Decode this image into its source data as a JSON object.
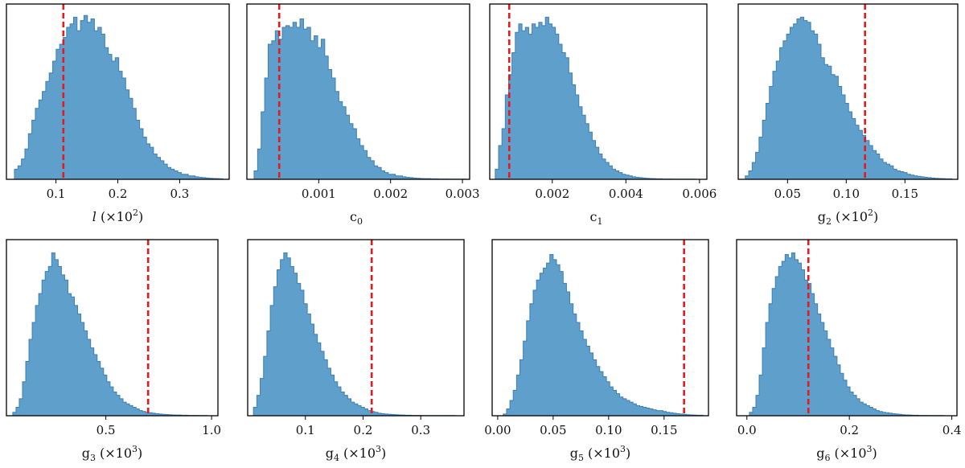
{
  "chart_data": [
    {
      "type": "histogram",
      "xlabel": {
        "base": "l",
        "italic": true,
        "sub": "",
        "factor": "(×10",
        "exp": "2",
        "close": ")"
      },
      "xlim": [
        0.02,
        0.38
      ],
      "ticks": [
        {
          "v": 0.1,
          "label": "0.1"
        },
        {
          "v": 0.2,
          "label": "0.2"
        },
        {
          "v": 0.3,
          "label": "0.3"
        }
      ],
      "truth": 0.112,
      "bins": [
        0.033,
        0.37
      ],
      "heights": [
        0.06,
        0.08,
        0.12,
        0.18,
        0.27,
        0.35,
        0.42,
        0.47,
        0.52,
        0.58,
        0.63,
        0.7,
        0.77,
        0.8,
        0.84,
        0.9,
        0.92,
        0.96,
        0.88,
        0.94,
        0.97,
        0.93,
        0.95,
        0.88,
        0.9,
        0.86,
        0.78,
        0.74,
        0.7,
        0.72,
        0.64,
        0.6,
        0.53,
        0.48,
        0.42,
        0.35,
        0.3,
        0.25,
        0.21,
        0.19,
        0.15,
        0.13,
        0.11,
        0.09,
        0.07,
        0.06,
        0.05,
        0.04,
        0.03,
        0.03,
        0.02,
        0.02,
        0.015,
        0.012,
        0.01,
        0.008,
        0.006,
        0.005,
        0.004,
        0.003
      ]
    },
    {
      "type": "histogram",
      "xlabel": {
        "base": "c",
        "italic": false,
        "sub": "0",
        "factor": "",
        "exp": "",
        "close": ""
      },
      "xlim": [
        0.0,
        0.0031
      ],
      "ticks": [
        {
          "v": 0.001,
          "label": "0.001"
        },
        {
          "v": 0.002,
          "label": "0.002"
        },
        {
          "v": 0.003,
          "label": "0.003"
        }
      ],
      "truth": 0.00045,
      "bins": [
        0.0001,
        0.00305
      ],
      "heights": [
        0.05,
        0.18,
        0.4,
        0.6,
        0.8,
        0.82,
        0.88,
        0.83,
        0.9,
        0.91,
        0.9,
        0.93,
        0.9,
        0.95,
        0.89,
        0.9,
        0.82,
        0.85,
        0.78,
        0.83,
        0.73,
        0.65,
        0.6,
        0.52,
        0.46,
        0.43,
        0.38,
        0.33,
        0.3,
        0.24,
        0.2,
        0.17,
        0.13,
        0.11,
        0.08,
        0.07,
        0.05,
        0.04,
        0.03,
        0.03,
        0.02,
        0.02,
        0.015,
        0.012,
        0.01,
        0.008,
        0.006,
        0.005,
        0.004,
        0.004,
        0.003,
        0.003,
        0.002,
        0.002,
        0.002,
        0.001,
        0.001,
        0.001,
        0.001,
        0.001
      ]
    },
    {
      "type": "histogram",
      "xlabel": {
        "base": "c",
        "italic": false,
        "sub": "1",
        "factor": "",
        "exp": "",
        "close": ""
      },
      "xlim": [
        0.0003,
        0.0062
      ],
      "ticks": [
        {
          "v": 0.002,
          "label": "0.002"
        },
        {
          "v": 0.004,
          "label": "0.004"
        },
        {
          "v": 0.006,
          "label": "0.006"
        }
      ],
      "truth": 0.00083,
      "bins": [
        0.00045,
        0.0059
      ],
      "heights": [
        0.06,
        0.2,
        0.3,
        0.5,
        0.62,
        0.75,
        0.87,
        0.92,
        0.88,
        0.9,
        0.86,
        0.92,
        0.9,
        0.93,
        0.91,
        0.96,
        0.92,
        0.9,
        0.86,
        0.8,
        0.75,
        0.72,
        0.63,
        0.56,
        0.5,
        0.43,
        0.38,
        0.33,
        0.28,
        0.23,
        0.19,
        0.15,
        0.12,
        0.1,
        0.08,
        0.06,
        0.05,
        0.04,
        0.03,
        0.025,
        0.02,
        0.015,
        0.012,
        0.01,
        0.008,
        0.006,
        0.005,
        0.004,
        0.003,
        0.003,
        0.002,
        0.002,
        0.002,
        0.001,
        0.001,
        0.001,
        0.001,
        0.001,
        0.001,
        0.001
      ]
    },
    {
      "type": "histogram",
      "xlabel": {
        "base": "g",
        "italic": false,
        "sub": "2",
        "factor": "(×10",
        "exp": "2",
        "close": ")"
      },
      "xlim": [
        0.008,
        0.195
      ],
      "ticks": [
        {
          "v": 0.05,
          "label": "0.05"
        },
        {
          "v": 0.1,
          "label": "0.10"
        },
        {
          "v": 0.15,
          "label": "0.15"
        }
      ],
      "truth": 0.116,
      "bins": [
        0.014,
        0.19
      ],
      "heights": [
        0.02,
        0.05,
        0.1,
        0.16,
        0.25,
        0.35,
        0.45,
        0.55,
        0.64,
        0.7,
        0.78,
        0.82,
        0.86,
        0.9,
        0.92,
        0.95,
        0.96,
        0.94,
        0.93,
        0.88,
        0.86,
        0.8,
        0.72,
        0.68,
        0.67,
        0.62,
        0.61,
        0.55,
        0.5,
        0.45,
        0.4,
        0.36,
        0.32,
        0.29,
        0.26,
        0.23,
        0.2,
        0.17,
        0.15,
        0.12,
        0.1,
        0.09,
        0.08,
        0.06,
        0.05,
        0.045,
        0.04,
        0.03,
        0.025,
        0.02,
        0.018,
        0.015,
        0.012,
        0.01,
        0.008,
        0.006,
        0.005,
        0.004,
        0.003,
        0.003
      ]
    },
    {
      "type": "histogram",
      "xlabel": {
        "base": "g",
        "italic": false,
        "sub": "3",
        "factor": "(×10",
        "exp": "3",
        "close": ")"
      },
      "xlim": [
        0.03,
        1.03
      ],
      "ticks": [
        {
          "v": 0.5,
          "label": "0.5"
        },
        {
          "v": 1.0,
          "label": "1.0"
        }
      ],
      "truth": 0.7,
      "bins": [
        0.06,
        0.98
      ],
      "heights": [
        0.02,
        0.05,
        0.1,
        0.2,
        0.32,
        0.45,
        0.55,
        0.65,
        0.72,
        0.8,
        0.85,
        0.88,
        0.96,
        0.92,
        0.88,
        0.83,
        0.8,
        0.72,
        0.7,
        0.65,
        0.6,
        0.55,
        0.5,
        0.45,
        0.4,
        0.36,
        0.32,
        0.28,
        0.24,
        0.2,
        0.17,
        0.14,
        0.12,
        0.1,
        0.08,
        0.07,
        0.06,
        0.05,
        0.04,
        0.03,
        0.025,
        0.02,
        0.018,
        0.015,
        0.012,
        0.01,
        0.008,
        0.007,
        0.006,
        0.005,
        0.004,
        0.004,
        0.003,
        0.003,
        0.002,
        0.002,
        0.002,
        0.001,
        0.001,
        0.001
      ]
    },
    {
      "type": "histogram",
      "xlabel": {
        "base": "g",
        "italic": false,
        "sub": "4",
        "factor": "(×10",
        "exp": "3",
        "close": ")"
      },
      "xlim": [
        0.0,
        0.375
      ],
      "ticks": [
        {
          "v": 0.1,
          "label": "0.1"
        },
        {
          "v": 0.2,
          "label": "0.2"
        },
        {
          "v": 0.3,
          "label": "0.3"
        }
      ],
      "truth": 0.215,
      "bins": [
        0.01,
        0.36
      ],
      "heights": [
        0.05,
        0.12,
        0.22,
        0.35,
        0.5,
        0.65,
        0.76,
        0.86,
        0.92,
        0.96,
        0.93,
        0.88,
        0.84,
        0.78,
        0.74,
        0.66,
        0.6,
        0.54,
        0.48,
        0.43,
        0.38,
        0.33,
        0.28,
        0.24,
        0.2,
        0.17,
        0.14,
        0.12,
        0.1,
        0.08,
        0.07,
        0.06,
        0.05,
        0.04,
        0.03,
        0.025,
        0.02,
        0.015,
        0.012,
        0.01,
        0.008,
        0.007,
        0.006,
        0.005,
        0.004,
        0.003,
        0.003,
        0.002,
        0.002,
        0.002,
        0.001,
        0.001,
        0.001,
        0.001,
        0.001,
        0.001,
        0.001,
        0.001,
        0.001,
        0.001
      ]
    },
    {
      "type": "histogram",
      "xlabel": {
        "base": "g",
        "italic": false,
        "sub": "5",
        "factor": "(×10",
        "exp": "3",
        "close": ")"
      },
      "xlim": [
        -0.005,
        0.19
      ],
      "ticks": [
        {
          "v": 0.0,
          "label": "0.00"
        },
        {
          "v": 0.05,
          "label": "0.05"
        },
        {
          "v": 0.1,
          "label": "0.10"
        },
        {
          "v": 0.15,
          "label": "0.15"
        }
      ],
      "truth": 0.168,
      "bins": [
        0.005,
        0.185
      ],
      "heights": [
        0.01,
        0.04,
        0.09,
        0.15,
        0.24,
        0.33,
        0.44,
        0.56,
        0.66,
        0.74,
        0.8,
        0.84,
        0.87,
        0.9,
        0.95,
        0.92,
        0.89,
        0.85,
        0.78,
        0.73,
        0.66,
        0.6,
        0.55,
        0.5,
        0.45,
        0.41,
        0.37,
        0.33,
        0.29,
        0.26,
        0.23,
        0.2,
        0.17,
        0.15,
        0.13,
        0.11,
        0.1,
        0.09,
        0.08,
        0.07,
        0.06,
        0.055,
        0.05,
        0.045,
        0.04,
        0.035,
        0.03,
        0.03,
        0.025,
        0.02,
        0.018,
        0.015,
        0.012,
        0.01,
        0.008,
        0.006,
        0.005,
        0.004,
        0.003,
        0.003
      ]
    },
    {
      "type": "histogram",
      "xlabel": {
        "base": "g",
        "italic": false,
        "sub": "6",
        "factor": "(×10",
        "exp": "3",
        "close": ")"
      },
      "xlim": [
        -0.02,
        0.41
      ],
      "ticks": [
        {
          "v": 0.0,
          "label": "0.0"
        },
        {
          "v": 0.2,
          "label": "0.2"
        },
        {
          "v": 0.4,
          "label": "0.4"
        }
      ],
      "truth": 0.12,
      "bins": [
        0.005,
        0.385
      ],
      "heights": [
        0.02,
        0.05,
        0.12,
        0.24,
        0.4,
        0.55,
        0.66,
        0.75,
        0.82,
        0.88,
        0.91,
        0.95,
        0.93,
        0.96,
        0.92,
        0.9,
        0.86,
        0.8,
        0.78,
        0.72,
        0.66,
        0.6,
        0.55,
        0.5,
        0.45,
        0.4,
        0.35,
        0.3,
        0.25,
        0.21,
        0.17,
        0.14,
        0.12,
        0.1,
        0.08,
        0.07,
        0.06,
        0.05,
        0.04,
        0.03,
        0.025,
        0.02,
        0.018,
        0.015,
        0.012,
        0.01,
        0.008,
        0.006,
        0.005,
        0.004,
        0.003,
        0.003,
        0.002,
        0.002,
        0.002,
        0.001,
        0.001,
        0.001,
        0.001,
        0.001
      ]
    }
  ]
}
